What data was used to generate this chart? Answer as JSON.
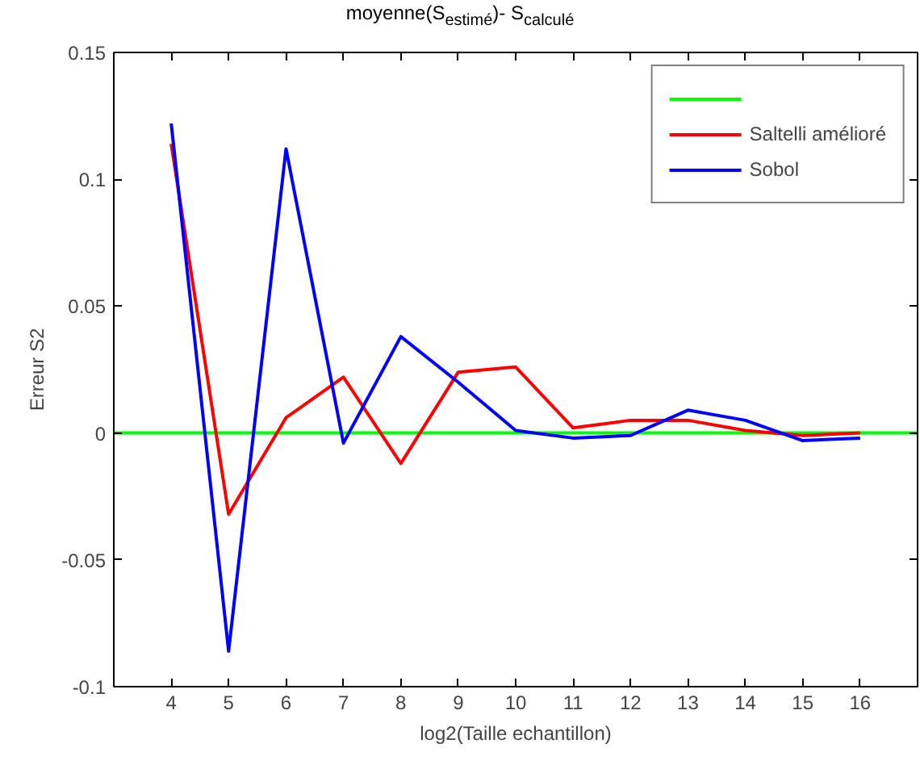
{
  "chart_data": {
    "type": "line",
    "title": "moyenne(S$_{estimé}$)- S$_{calculé}$",
    "xlabel": "log2(Taille echantillon)",
    "ylabel": "Erreur S2",
    "x": [
      4,
      5,
      6,
      7,
      8,
      9,
      10,
      11,
      12,
      13,
      14,
      15,
      16
    ],
    "series": [
      {
        "color": "#00ff00",
        "x": [
          3,
          17
        ],
        "values": [
          0,
          0
        ]
      },
      {
        "name": "Saltelli amélioré",
        "color": "#ff0000",
        "values": [
          0.114,
          -0.032,
          0.006,
          0.022,
          -0.012,
          0.024,
          0.026,
          0.002,
          0.005,
          0.005,
          0.001,
          -0.001,
          0.0
        ]
      },
      {
        "name": "Sobol",
        "color": "#0000ff",
        "values": [
          0.122,
          -0.086,
          0.112,
          -0.004,
          0.038,
          0.02,
          0.001,
          -0.002,
          -0.001,
          0.009,
          0.005,
          -0.003,
          -0.002
        ]
      }
    ],
    "xlim": [
      3,
      17
    ],
    "xticks": [
      4,
      5,
      6,
      7,
      8,
      9,
      10,
      11,
      12,
      13,
      14,
      15,
      16
    ],
    "ylim": [
      -0.1,
      0.15
    ],
    "yticks": [
      -0.1,
      -0.05,
      0,
      0.05,
      0.1,
      0.15
    ],
    "grid": false,
    "legend": "top right",
    "line_style": "solid",
    "marker": "none"
  }
}
